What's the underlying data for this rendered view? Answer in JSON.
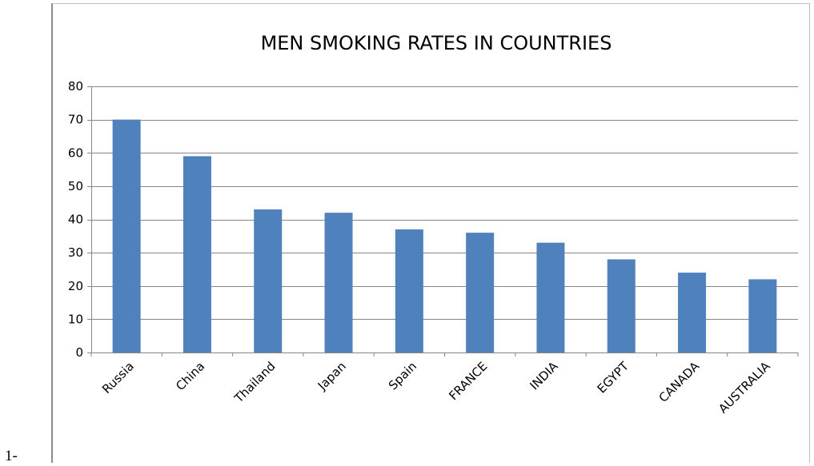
{
  "list_marker": "1-",
  "chart_data": {
    "type": "bar",
    "title": "MEN SMOKING RATES IN COUNTRIES",
    "categories": [
      "Russia",
      "China",
      "Thailand",
      "Japan",
      "Spain",
      "FRANCE",
      "INDIA",
      "EGYPT",
      "CANADA",
      "AUSTRALIA"
    ],
    "values": [
      70,
      59,
      43,
      42,
      37,
      36,
      33,
      28,
      24,
      22
    ],
    "ylim": [
      0,
      80
    ],
    "yticks": [
      0,
      10,
      20,
      30,
      40,
      50,
      60,
      70,
      80
    ],
    "grid": true,
    "legend": "none",
    "bar_color": "#4f81bd",
    "gridline_color": "#868686"
  }
}
